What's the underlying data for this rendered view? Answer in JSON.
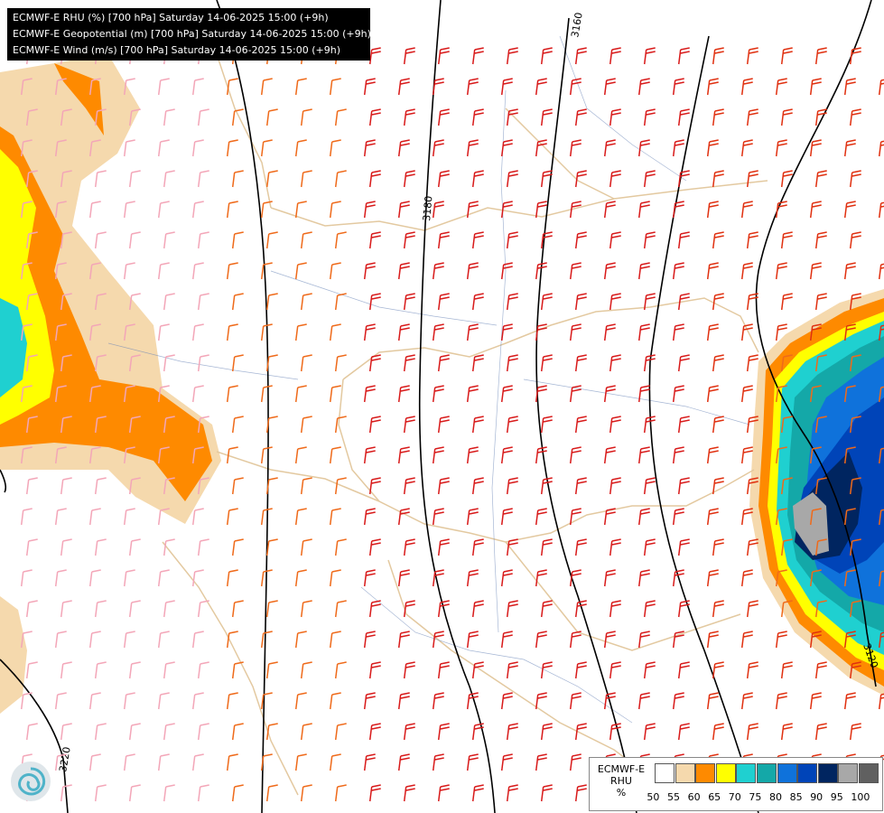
{
  "header": {
    "line1": "ECMWF-E RHU (%) [700 hPa] Saturday 14-06-2025 15:00 (+9h)",
    "line2": "ECMWF-E Geopotential (m) [700 hPa] Saturday 14-06-2025 15:00 (+9h)",
    "line3": "ECMWF-E Wind (m/s) [700 hPa] Saturday 14-06-2025 15:00 (+9h)"
  },
  "contours": {
    "labels": [
      "3160",
      "3180",
      "3120",
      "3220"
    ]
  },
  "legend": {
    "title_line1": "ECMWF-E",
    "title_line2": "RHU",
    "unit": "%",
    "ticks": [
      "50",
      "55",
      "60",
      "65",
      "70",
      "75",
      "80",
      "85",
      "90",
      "95",
      "100"
    ],
    "colors": [
      "#ffffff",
      "#f5d9ad",
      "#fe8a00",
      "#ffff00",
      "#1fd0d0",
      "#14a8a8",
      "#0f72db",
      "#0044b8",
      "#002560",
      "#a8a8a8",
      "#606060"
    ]
  },
  "logo": {
    "icon": "spiral-logo-icon"
  }
}
